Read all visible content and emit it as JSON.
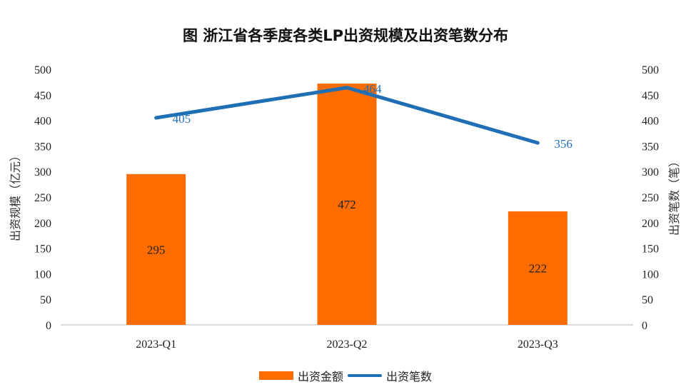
{
  "chart_data": {
    "type": "bar",
    "title": "图  浙江省各季度各类LP出资规模及出资笔数分布",
    "categories": [
      "2023-Q1",
      "2023-Q2",
      "2023-Q3"
    ],
    "series": [
      {
        "name": "出资金额",
        "kind": "bar",
        "axis": "left",
        "values": [
          295,
          472,
          222
        ],
        "color": "#ff6d00"
      },
      {
        "name": "出资笔数",
        "kind": "line",
        "axis": "right",
        "values": [
          405,
          464,
          356
        ],
        "color": "#1f6fb5"
      }
    ],
    "ylabel": "出资规模（亿元）",
    "y2label": "出资笔数（笔）",
    "xlabel": "",
    "ylim": [
      0,
      500
    ],
    "y2lim": [
      0,
      500
    ],
    "yticks": [
      0,
      50,
      100,
      150,
      200,
      250,
      300,
      350,
      400,
      450,
      500
    ],
    "y2ticks": [
      0,
      50,
      100,
      150,
      200,
      250,
      300,
      350,
      400,
      450,
      500
    ],
    "grid": false,
    "legend_position": "bottom"
  }
}
